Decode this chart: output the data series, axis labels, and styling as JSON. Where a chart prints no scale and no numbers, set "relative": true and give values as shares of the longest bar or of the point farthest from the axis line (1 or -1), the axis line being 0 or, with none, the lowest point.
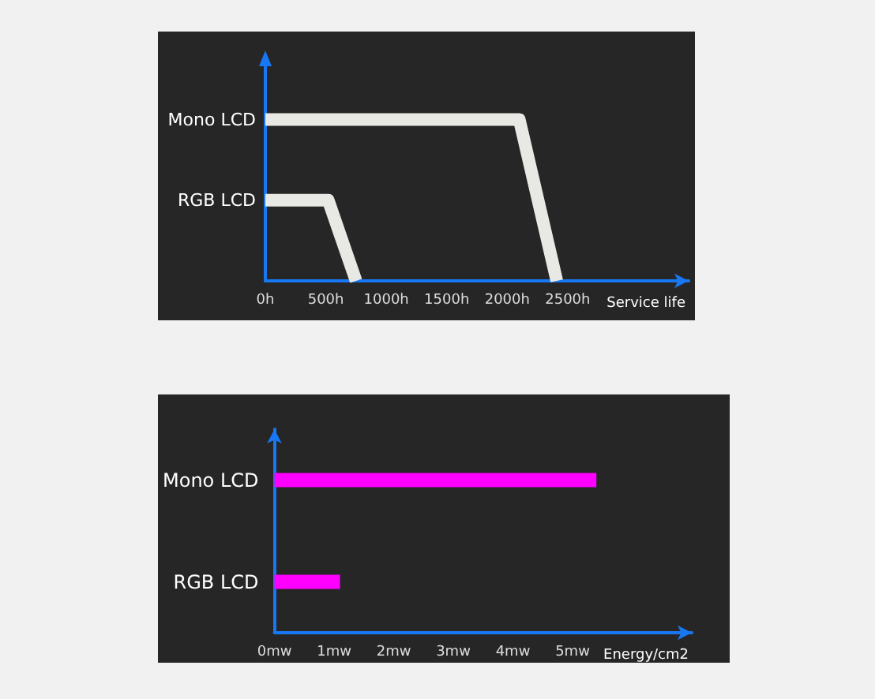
{
  "chart_data": [
    {
      "type": "line",
      "relative": true,
      "xlabel": "Service life",
      "marker": "none",
      "xlim": [
        0,
        3500
      ],
      "xticks": [
        {
          "value": 0,
          "label": "0h"
        },
        {
          "value": 500,
          "label": "500h"
        },
        {
          "value": 1000,
          "label": "1000h"
        },
        {
          "value": 1500,
          "label": "1500h"
        },
        {
          "value": 2000,
          "label": "2000h"
        },
        {
          "value": 2500,
          "label": "2500h"
        }
      ],
      "series": [
        {
          "name": "Mono LCD",
          "color": "#e8e8e4",
          "x": [
            0,
            2100,
            2410
          ],
          "values": [
            1,
            1,
            0
          ]
        },
        {
          "name": "RGB LCD",
          "color": "#e8e8e4",
          "x": [
            0,
            520,
            750
          ],
          "values": [
            0.5,
            0.5,
            0
          ]
        }
      ]
    },
    {
      "type": "bar",
      "orientation": "horizontal",
      "xlabel": "Energy/cm2",
      "categories": [
        "Mono LCD",
        "RGB LCD"
      ],
      "values": [
        5.4,
        1.1
      ],
      "color": "#ff00ff",
      "xlim": [
        0,
        7
      ],
      "xticks": [
        {
          "value": 0,
          "label": "0mw"
        },
        {
          "value": 1,
          "label": "1mw"
        },
        {
          "value": 2,
          "label": "2mw"
        },
        {
          "value": 3,
          "label": "3mw"
        },
        {
          "value": 4,
          "label": "4mw"
        },
        {
          "value": 5,
          "label": "5mw"
        }
      ]
    }
  ]
}
